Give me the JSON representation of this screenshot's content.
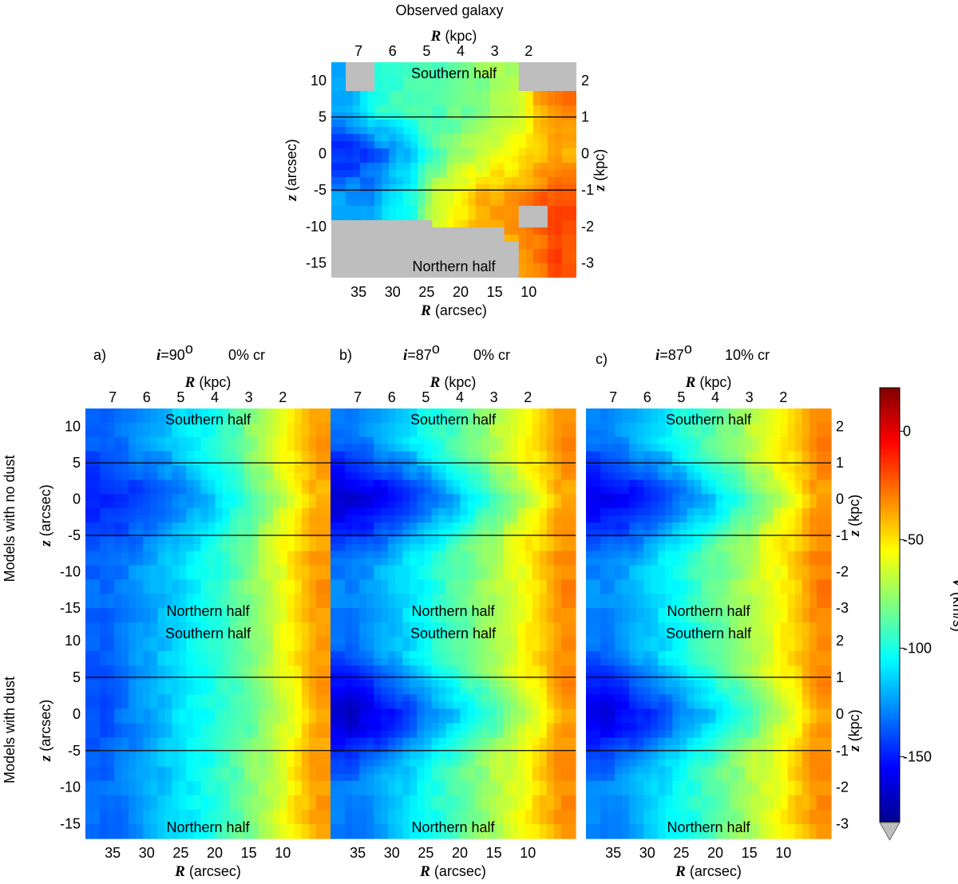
{
  "figure": {
    "top_title": "Observed galaxy",
    "row_labels": [
      "Models with no dust",
      "Models with dust"
    ],
    "columns": [
      {
        "letter": "a)",
        "inclination": "=90",
        "degree": "o",
        "cr": "0% cr"
      },
      {
        "letter": "b)",
        "inclination": "=87",
        "degree": "o",
        "cr": "0% cr"
      },
      {
        "letter": "c)",
        "inclination": "=87",
        "degree": "o",
        "cr": "10% cr"
      }
    ],
    "inclination_symbol": "i",
    "southern_label": "Southern half",
    "northern_label": "Northern half",
    "axis": {
      "r_kpc_symbol": "R",
      "r_kpc_unit": "(kpc)",
      "r_arcsec_symbol": "R",
      "r_arcsec_unit": "(arcsec)",
      "z_arcsec_symbol": "z",
      "z_arcsec_unit": "(arcsec)",
      "z_kpc_symbol": "z",
      "z_kpc_unit": "(kpc)"
    },
    "colorbar": {
      "symbol": "V",
      "unit": "(km/s)",
      "range": [
        -180,
        20
      ],
      "ticks": [
        0,
        -50,
        -100,
        -150
      ],
      "tick_labels": [
        "0",
        "-50",
        "-100",
        "-150"
      ]
    }
  },
  "chart_data": {
    "type": "heatmap",
    "description_of_axes": {
      "x": "R (arcsec), decreasing to the right",
      "x_range": [
        39,
        3
      ],
      "x_top": "R (kpc)",
      "y": "z (arcsec)",
      "y_range": [
        -17,
        12.5
      ],
      "y_right": "z (kpc)"
    },
    "x_ticks_arcsec": [
      35,
      30,
      25,
      20,
      15,
      10
    ],
    "x_ticks_kpc": [
      7,
      6,
      5,
      4,
      3,
      2
    ],
    "y_ticks_arcsec": [
      10,
      5,
      0,
      -5,
      -10,
      -15
    ],
    "y_ticks_kpc": [
      2,
      1,
      0,
      -1,
      -2,
      -3
    ],
    "kpc_per_arcsec": 0.2,
    "reference_lines_z": [
      5,
      -5
    ],
    "value_unit": "km/s",
    "panels": [
      {
        "id": "observed",
        "r_arcsec": [
          36,
          33,
          30,
          27,
          24,
          21,
          18,
          15,
          12,
          9,
          6
        ],
        "v_plane": [
          -150,
          -138,
          -130,
          -112,
          -92,
          -78,
          -72,
          -64,
          -56,
          -48,
          -40
        ],
        "v_upper": [
          -118,
          -100,
          -95,
          -92,
          -90,
          -85,
          -80,
          -75,
          -70,
          -40,
          -30
        ],
        "v_lower": [
          -125,
          -128,
          -105,
          -100,
          -66,
          -58,
          -40,
          -38,
          -35,
          -28,
          -20
        ],
        "masked": "grey corners top-left/top-right and lower region z<-10 for R>12"
      },
      {
        "id": "a_nodust",
        "r_arcsec": [
          36,
          32,
          28,
          24,
          20,
          16,
          12,
          8,
          5
        ],
        "v_plane": [
          -148,
          -145,
          -138,
          -128,
          -115,
          -100,
          -80,
          -58,
          -40
        ],
        "v_edge": [
          -135,
          -128,
          -120,
          -110,
          -100,
          -85,
          -68,
          -48,
          -35
        ]
      },
      {
        "id": "b_nodust",
        "r_arcsec": [
          36,
          32,
          28,
          24,
          20,
          16,
          12,
          8,
          5
        ],
        "v_plane": [
          -165,
          -160,
          -150,
          -135,
          -118,
          -100,
          -80,
          -58,
          -38
        ],
        "v_edge": [
          -130,
          -122,
          -112,
          -100,
          -88,
          -75,
          -62,
          -46,
          -32
        ]
      },
      {
        "id": "c_nodust",
        "r_arcsec": [
          36,
          32,
          28,
          24,
          20,
          16,
          12,
          8,
          5
        ],
        "v_plane": [
          -158,
          -155,
          -145,
          -130,
          -115,
          -98,
          -78,
          -56,
          -36
        ],
        "v_edge": [
          -128,
          -120,
          -110,
          -98,
          -86,
          -74,
          -60,
          -45,
          -30
        ]
      },
      {
        "id": "a_dust",
        "r_arcsec": [
          36,
          32,
          28,
          24,
          20,
          16,
          12,
          8,
          5
        ],
        "v_plane": [
          -140,
          -130,
          -118,
          -108,
          -100,
          -92,
          -78,
          -58,
          -38
        ],
        "v_edge": [
          -135,
          -128,
          -118,
          -108,
          -98,
          -85,
          -70,
          -50,
          -35
        ]
      },
      {
        "id": "b_dust",
        "r_arcsec": [
          36,
          32,
          28,
          24,
          20,
          16,
          12,
          8,
          5
        ],
        "v_plane": [
          -168,
          -160,
          -145,
          -130,
          -115,
          -100,
          -80,
          -58,
          -38
        ],
        "v_edge": [
          -132,
          -124,
          -114,
          -100,
          -88,
          -75,
          -62,
          -46,
          -32
        ]
      },
      {
        "id": "c_dust",
        "r_arcsec": [
          36,
          32,
          28,
          24,
          20,
          16,
          12,
          8,
          5
        ],
        "v_plane": [
          -162,
          -155,
          -142,
          -128,
          -115,
          -100,
          -80,
          -58,
          -38
        ],
        "v_edge": [
          -130,
          -122,
          -112,
          -100,
          -88,
          -75,
          -62,
          -46,
          -32
        ]
      }
    ]
  }
}
